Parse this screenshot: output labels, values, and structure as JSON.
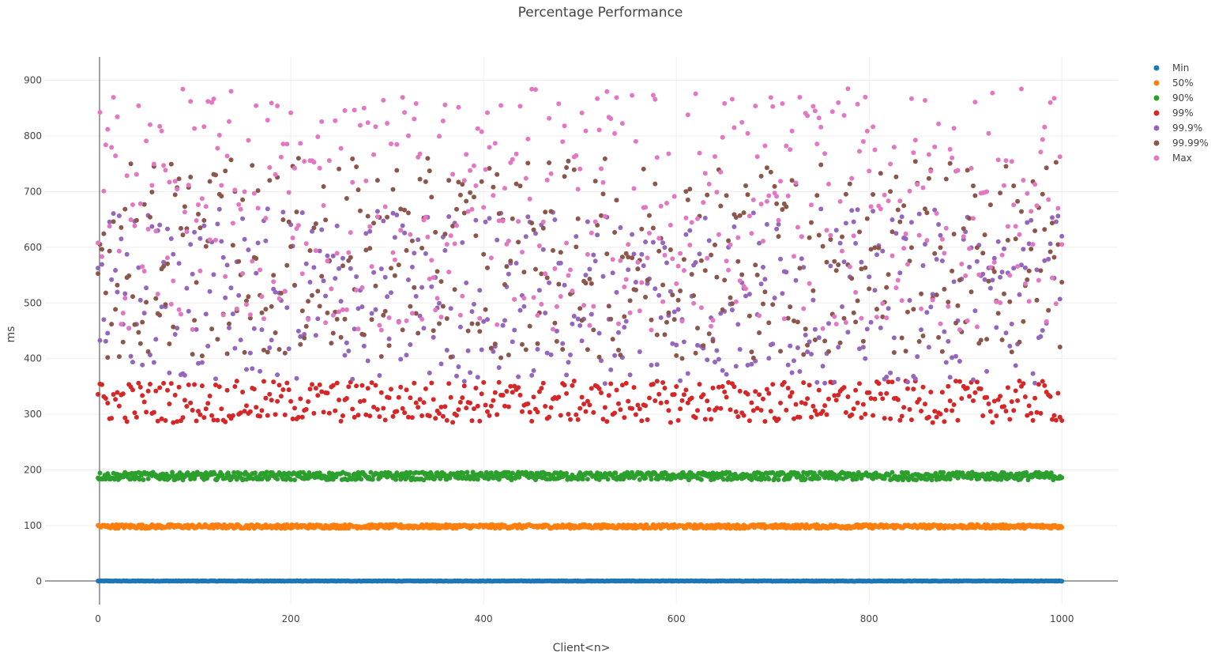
{
  "chart_data": {
    "type": "scatter",
    "title": "Percentage Performance",
    "xlabel": "Client<n>",
    "ylabel": "ms",
    "xlim": [
      -55,
      1058
    ],
    "ylim": [
      -42,
      942
    ],
    "x_ticks": [
      0,
      200,
      400,
      600,
      800,
      1000
    ],
    "y_ticks": [
      0,
      100,
      200,
      300,
      400,
      500,
      600,
      700,
      800,
      900
    ],
    "grid": true,
    "legend_position": "top-right",
    "x_range": [
      0,
      1000
    ],
    "series": [
      {
        "name": "Min",
        "color": "#1f77b4",
        "band": [
          0,
          1
        ]
      },
      {
        "name": "50%",
        "color": "#ff7f0e",
        "band": [
          95,
          102
        ]
      },
      {
        "name": "90%",
        "color": "#2ca02c",
        "band": [
          182,
          196
        ]
      },
      {
        "name": "99%",
        "color": "#d62728",
        "band": [
          285,
          360
        ]
      },
      {
        "name": "99.9%",
        "color": "#9467bd",
        "band": [
          355,
          670
        ]
      },
      {
        "name": "99.99%",
        "color": "#8c564b",
        "band": [
          400,
          760
        ]
      },
      {
        "name": "Max",
        "color": "#e377c2",
        "band": [
          450,
          885
        ]
      }
    ]
  }
}
